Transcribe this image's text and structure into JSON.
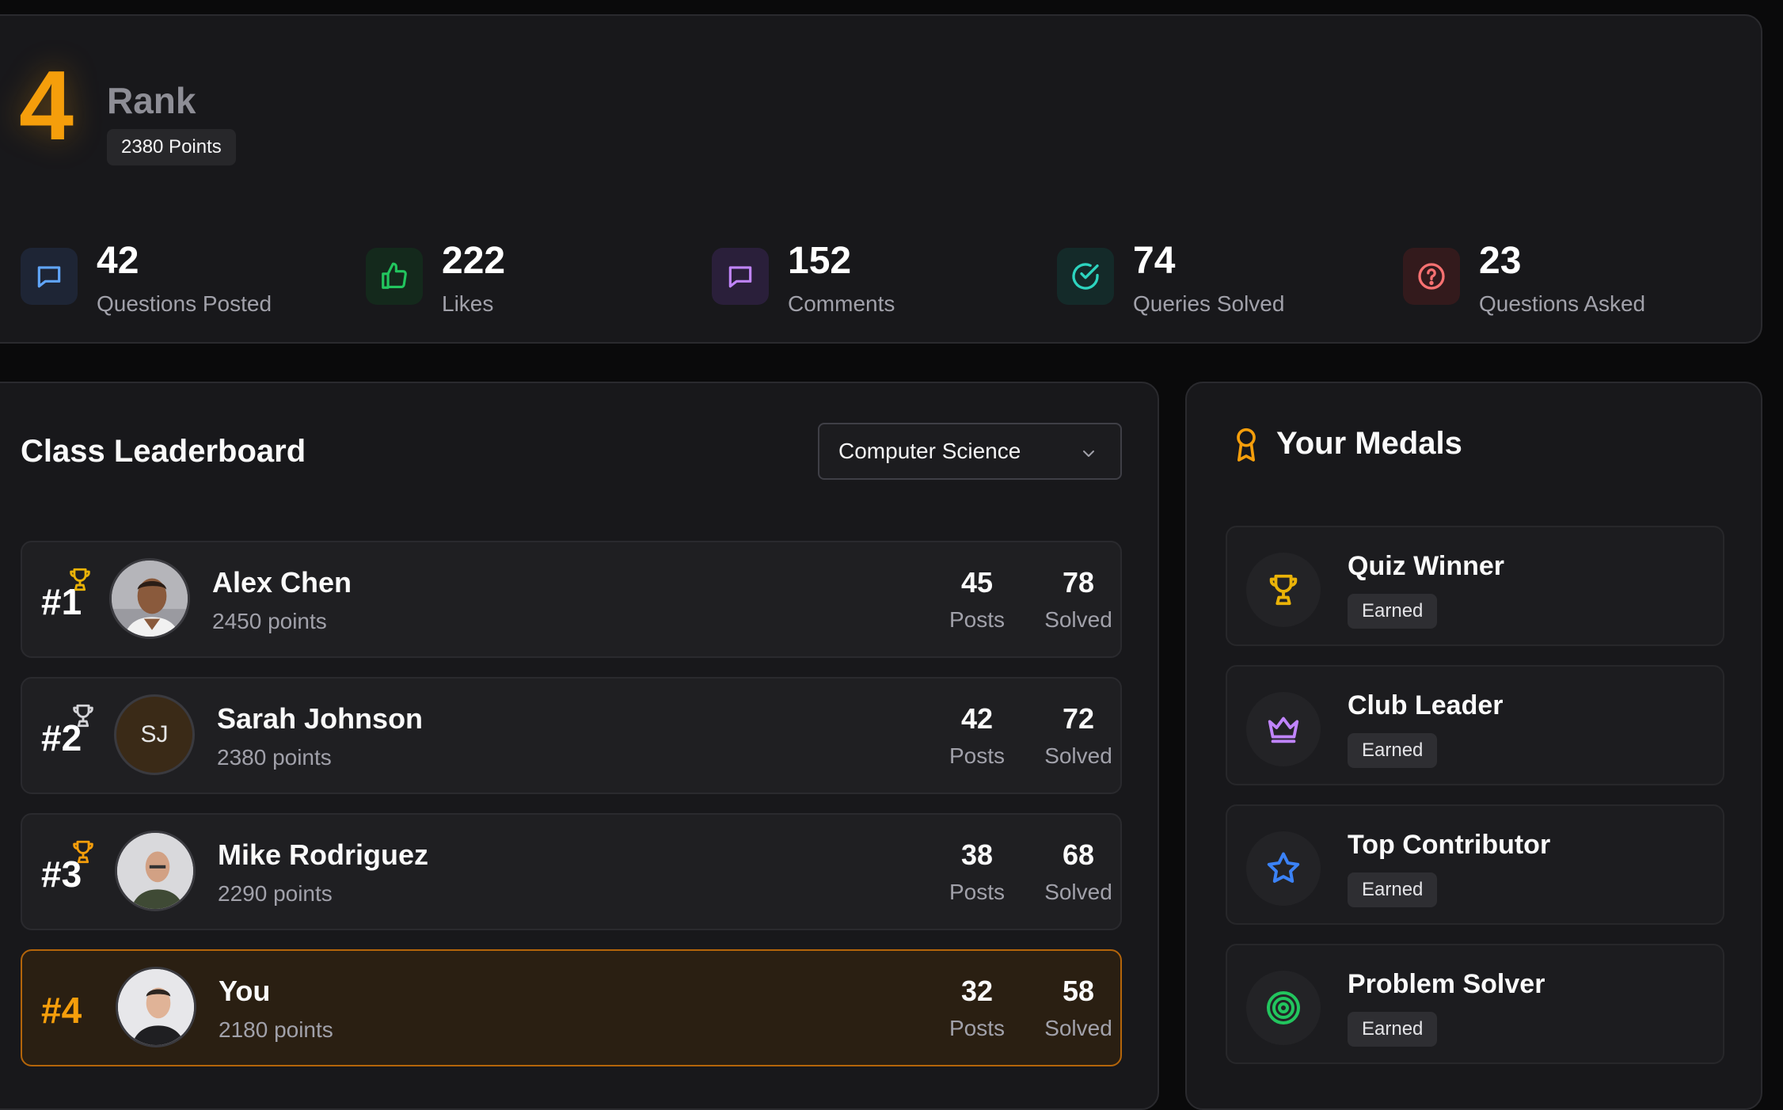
{
  "rank": {
    "position": "4",
    "label": "Rank",
    "points": "2380 Points"
  },
  "stats": [
    {
      "value": "42",
      "label": "Questions Posted",
      "icon": "chat-bubble-icon",
      "color": "#60a5fa",
      "bg": "#1e2535"
    },
    {
      "value": "222",
      "label": "Likes",
      "icon": "thumbs-up-icon",
      "color": "#22c55e",
      "bg": "#14291c"
    },
    {
      "value": "152",
      "label": "Comments",
      "icon": "comment-icon",
      "color": "#c084fc",
      "bg": "#2a1f3a"
    },
    {
      "value": "74",
      "label": "Queries Solved",
      "icon": "check-circle-icon",
      "color": "#2dd4bf",
      "bg": "#142a29"
    },
    {
      "value": "23",
      "label": "Questions Asked",
      "icon": "question-circle-icon",
      "color": "#f87171",
      "bg": "#331a1c"
    }
  ],
  "leaderboard": {
    "title": "Class Leaderboard",
    "selected_class": "Computer Science",
    "posts_label": "Posts",
    "solved_label": "Solved",
    "rows": [
      {
        "rank": "#1",
        "name": "Alex Chen",
        "points": "2450 points",
        "posts": "45",
        "solved": "78",
        "trophy_color": "#eab308"
      },
      {
        "rank": "#2",
        "name": "Sarah Johnson",
        "points": "2380 points",
        "posts": "42",
        "solved": "72",
        "initials": "SJ",
        "trophy_color": "#d4d4d8"
      },
      {
        "rank": "#3",
        "name": "Mike Rodriguez",
        "points": "2290 points",
        "posts": "38",
        "solved": "68",
        "trophy_color": "#f59e0b"
      },
      {
        "rank": "#4",
        "name": "You",
        "points": "2180 points",
        "posts": "32",
        "solved": "58"
      }
    ]
  },
  "medals": {
    "title": "Your Medals",
    "items": [
      {
        "name": "Quiz Winner",
        "status": "Earned",
        "icon": "trophy-icon",
        "color": "#eab308"
      },
      {
        "name": "Club Leader",
        "status": "Earned",
        "icon": "crown-icon",
        "color": "#c084fc"
      },
      {
        "name": "Top Contributor",
        "status": "Earned",
        "icon": "star-icon",
        "color": "#3b82f6"
      },
      {
        "name": "Problem Solver",
        "status": "Earned",
        "icon": "target-icon",
        "color": "#22c55e"
      }
    ]
  }
}
